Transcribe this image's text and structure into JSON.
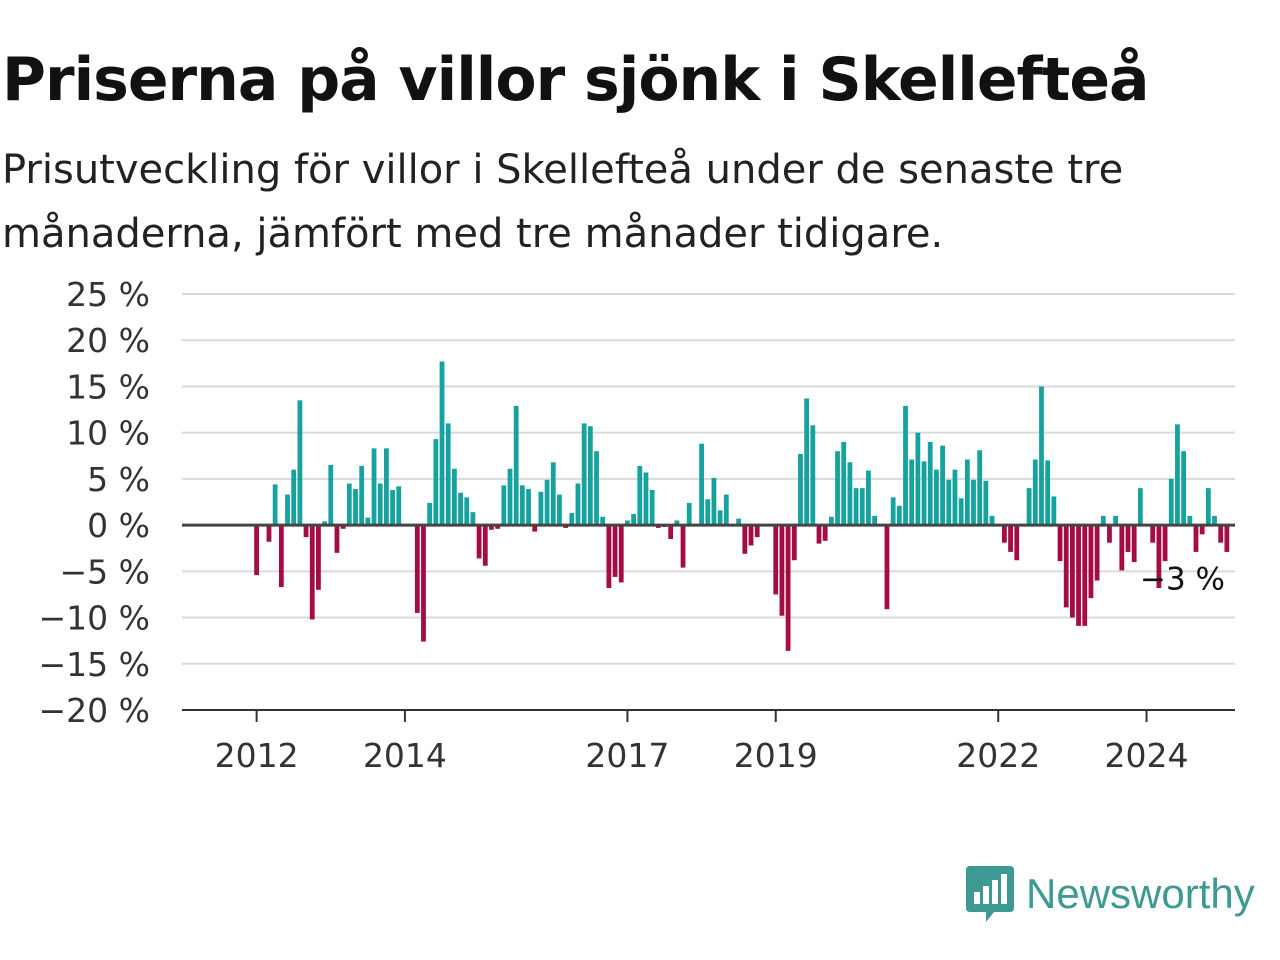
{
  "title": "Priserna på villor sjönk i Skellefteå",
  "subtitle": "Prisutveckling för villor i Skellefteå under de senaste tre månaderna, jämfört med tre månader tidigare.",
  "brand": {
    "name": "Newsworthy",
    "logo_icon": "bar-chart-speech-bubble-icon"
  },
  "colors": {
    "positive": "#16a3a0",
    "negative": "#a50b45",
    "grid": "#dadada",
    "zero_line": "#444444",
    "brand": "#3d9a92"
  },
  "chart_data": {
    "type": "bar",
    "title": "",
    "xlabel": "",
    "ylabel": "",
    "ylim": [
      -20,
      25
    ],
    "yticks": [
      25,
      20,
      15,
      10,
      5,
      0,
      -5,
      -10,
      -15,
      -20
    ],
    "ytick_labels": [
      "25 %",
      "20 %",
      "15 %",
      "10 %",
      "5 %",
      "0 %",
      "−5 %",
      "−10 %",
      "−15 %",
      "−20 %"
    ],
    "grid": true,
    "x_start": "2011-04",
    "x_step": "month",
    "xticks": [
      "2012",
      "2014",
      "2017",
      "2019",
      "2022",
      "2024"
    ],
    "xtick_positions": [
      "2012-01",
      "2014-01",
      "2017-01",
      "2019-01",
      "2022-01",
      "2024-01"
    ],
    "values": [
      0,
      0,
      0,
      0,
      0,
      0,
      0,
      0,
      0,
      -5.4,
      0,
      -1.8,
      4.4,
      -6.7,
      3.3,
      6.0,
      13.5,
      -1.3,
      -10.2,
      -7.0,
      0.4,
      6.5,
      -3.0,
      -0.4,
      4.5,
      3.9,
      6.4,
      0.8,
      8.3,
      4.5,
      8.3,
      3.8,
      4.2,
      0,
      0,
      -9.5,
      -12.6,
      2.4,
      9.3,
      17.7,
      11.0,
      6.1,
      3.5,
      3.0,
      1.4,
      -3.6,
      -4.4,
      -0.5,
      -0.4,
      4.3,
      6.1,
      12.9,
      4.3,
      3.9,
      -0.7,
      3.6,
      4.9,
      6.8,
      3.3,
      -0.3,
      1.3,
      4.5,
      11.0,
      10.7,
      8.0,
      0.9,
      -6.8,
      -5.6,
      -6.2,
      0.5,
      1.2,
      6.4,
      5.7,
      3.8,
      -0.3,
      -0.2,
      -1.5,
      0.5,
      -4.6,
      2.4,
      0,
      8.8,
      2.8,
      5.1,
      1.6,
      3.3,
      0,
      0.7,
      -3.1,
      -2.2,
      -1.3,
      0,
      0,
      -7.5,
      -9.8,
      -13.6,
      -3.8,
      7.7,
      13.7,
      10.8,
      -2.0,
      -1.7,
      0.9,
      8.0,
      9.0,
      6.8,
      4.0,
      4.0,
      5.9,
      1.0,
      0,
      -9.1,
      3.0,
      2.1,
      12.9,
      7.1,
      10.0,
      6.9,
      9.0,
      6.0,
      8.6,
      4.9,
      6.0,
      2.9,
      7.1,
      4.9,
      8.1,
      4.8,
      1.0,
      0,
      -1.9,
      -2.9,
      -3.8,
      0,
      4.0,
      7.1,
      15.0,
      7.0,
      3.1,
      -3.9,
      -8.9,
      -10.0,
      -10.9,
      -10.9,
      -7.9,
      -6.0,
      1.0,
      -1.9,
      1.0,
      -4.9,
      -2.9,
      -4.0,
      4.0,
      0,
      -1.9,
      -6.8,
      -3.9,
      5.0,
      10.9,
      8.0,
      1.0,
      -2.9,
      -1.0,
      4.0,
      1.0,
      -1.9,
      -2.9
    ],
    "annotations": [
      {
        "label": "−3 %",
        "at": "last"
      }
    ]
  }
}
